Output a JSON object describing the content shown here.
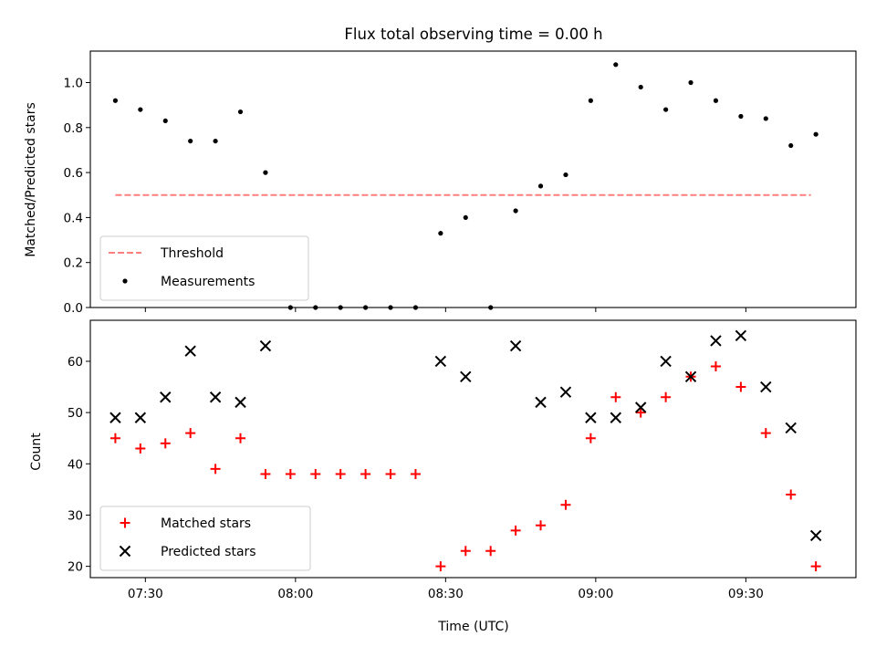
{
  "chart_data": [
    {
      "type": "scatter",
      "title": "Flux total observing time = 0.00 h",
      "xlabel": "",
      "ylabel": "Matched/Predicted stars",
      "xlim": [
        "07:19",
        "09:52"
      ],
      "ylim": [
        0,
        1.14
      ],
      "yticks": [
        "0.0",
        "0.2",
        "0.4",
        "0.6",
        "0.8",
        "1.0"
      ],
      "grid": false,
      "legend_position": "lower-left",
      "series": [
        {
          "name": "Threshold",
          "style": "dashed-line",
          "color": "#ff7f7f",
          "x": [
            "07:24",
            "09:43"
          ],
          "y": [
            0.5,
            0.5
          ]
        },
        {
          "name": "Measurements",
          "style": "dot",
          "color": "#000000",
          "x": [
            "07:24",
            "07:29",
            "07:34",
            "07:39",
            "07:44",
            "07:49",
            "07:54",
            "07:59",
            "08:04",
            "08:09",
            "08:14",
            "08:19",
            "08:24",
            "08:29",
            "08:34",
            "08:39",
            "08:44",
            "08:49",
            "08:54",
            "08:59",
            "09:04",
            "09:09",
            "09:14",
            "09:19",
            "09:24",
            "09:29",
            "09:34",
            "09:39",
            "09:44"
          ],
          "y": [
            0.92,
            0.88,
            0.83,
            0.74,
            0.74,
            0.87,
            0.6,
            0.0,
            0.0,
            0.0,
            0.0,
            0.0,
            0.0,
            0.33,
            0.4,
            0.0,
            0.43,
            0.54,
            0.59,
            0.92,
            1.08,
            0.98,
            0.88,
            1.0,
            0.92,
            0.85,
            0.84,
            0.72,
            0.77
          ]
        }
      ]
    },
    {
      "type": "scatter",
      "title": "",
      "xlabel": "Time (UTC)",
      "ylabel": "Count",
      "xlim": [
        "07:19",
        "09:52"
      ],
      "ylim": [
        17.8,
        68
      ],
      "xticks": [
        "07:30",
        "08:00",
        "08:30",
        "09:00",
        "09:30"
      ],
      "yticks": [
        "20",
        "30",
        "40",
        "50",
        "60"
      ],
      "grid": false,
      "legend_position": "lower-left",
      "series": [
        {
          "name": "Matched stars",
          "style": "plus",
          "color": "#ff0000",
          "x": [
            "07:24",
            "07:29",
            "07:34",
            "07:39",
            "07:44",
            "07:49",
            "07:54",
            "07:59",
            "08:04",
            "08:09",
            "08:14",
            "08:19",
            "08:24",
            "08:29",
            "08:34",
            "08:39",
            "08:44",
            "08:49",
            "08:54",
            "08:59",
            "09:04",
            "09:09",
            "09:14",
            "09:19",
            "09:24",
            "09:29",
            "09:34",
            "09:39",
            "09:44"
          ],
          "y": [
            45,
            43,
            44,
            46,
            39,
            45,
            38,
            38,
            38,
            38,
            38,
            38,
            38,
            20,
            23,
            23,
            27,
            28,
            32,
            45,
            53,
            50,
            53,
            57,
            59,
            55,
            46,
            34,
            20
          ]
        },
        {
          "name": "Predicted stars",
          "style": "x",
          "color": "#000000",
          "x": [
            "07:24",
            "07:29",
            "07:34",
            "07:39",
            "07:44",
            "07:49",
            "07:54",
            "08:29",
            "08:34",
            "08:44",
            "08:49",
            "08:54",
            "08:59",
            "09:04",
            "09:09",
            "09:14",
            "09:19",
            "09:24",
            "09:29",
            "09:34",
            "09:39",
            "09:44"
          ],
          "y": [
            49,
            49,
            53,
            62,
            53,
            52,
            63,
            60,
            57,
            63,
            52,
            54,
            49,
            49,
            51,
            60,
            57,
            64,
            65,
            55,
            47,
            26
          ]
        }
      ]
    }
  ]
}
